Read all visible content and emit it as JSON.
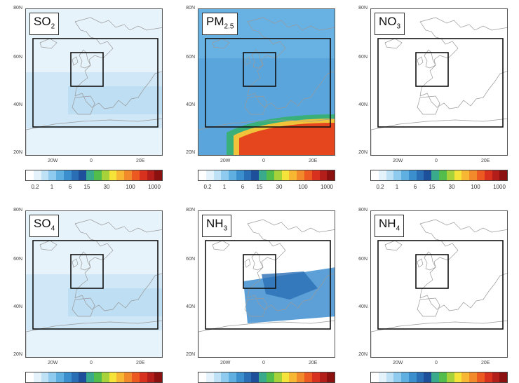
{
  "lat_labels": [
    "80N",
    "60N",
    "40N",
    "20N"
  ],
  "lon_labels": [
    "20W",
    "0",
    "20E"
  ],
  "colorbar": {
    "ticks": [
      "0.2",
      "1",
      "6",
      "15",
      "30",
      "100",
      "1000"
    ],
    "colors": [
      "#ffffff",
      "#e4f2fb",
      "#bfe1f5",
      "#8ecbee",
      "#5fb0e0",
      "#3b8fcd",
      "#2a6fb5",
      "#1e4f9a",
      "#3aaa8c",
      "#52bd4a",
      "#a8d23a",
      "#f5e33a",
      "#f7b733",
      "#f28a2c",
      "#ec5a22",
      "#d8321e",
      "#b31d1a",
      "#8b1010"
    ]
  },
  "panels": [
    {
      "label": "SO",
      "sub": "2",
      "fill": "light"
    },
    {
      "label": "PM",
      "sub": "2.5",
      "fill": "pm"
    },
    {
      "label": "NO",
      "sub": "3",
      "fill": "none"
    },
    {
      "label": "SO",
      "sub": "4",
      "fill": "light"
    },
    {
      "label": "NH",
      "sub": "3",
      "fill": "nh3"
    },
    {
      "label": "NH",
      "sub": "4",
      "fill": "none"
    }
  ]
}
